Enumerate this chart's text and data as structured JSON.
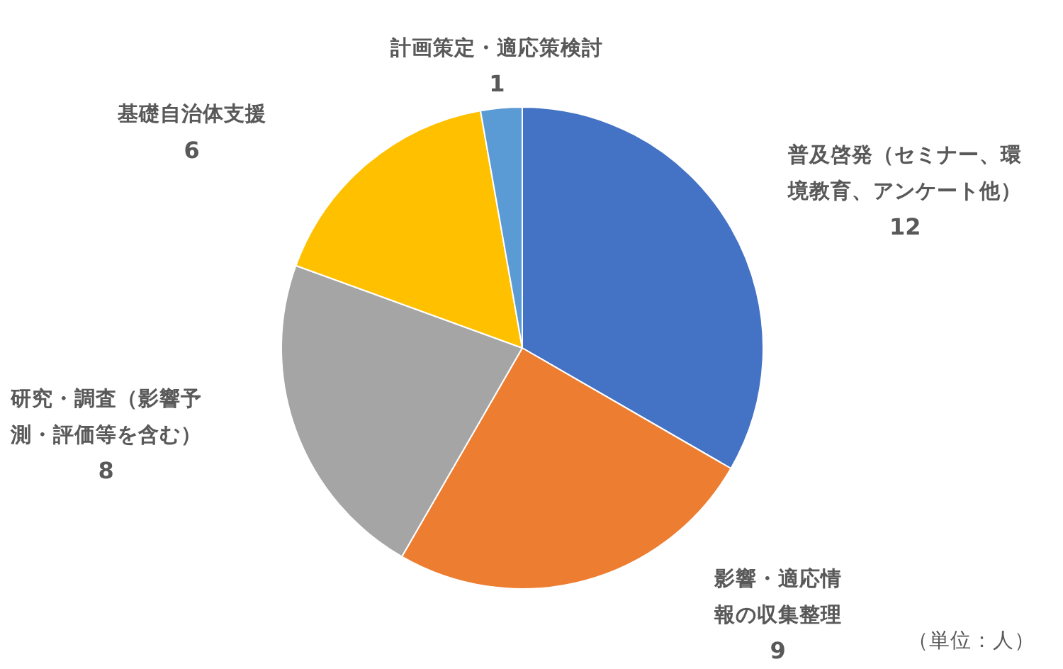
{
  "chart_data": {
    "type": "pie",
    "categories": [
      "普及啓発（セミナー、環境教育、アンケート他）",
      "影響・適応情報の収集整理",
      "研究・調査（影響予測・評価等を含む）",
      "基礎自治体支援",
      "計画策定・適応策検討"
    ],
    "values": [
      12,
      9,
      8,
      6,
      1
    ],
    "colors": [
      "#4472c4",
      "#ed7d31",
      "#a5a5a5",
      "#ffc000",
      "#5b9bd5"
    ],
    "data_labels": true,
    "annotations": [
      "（単位：人）"
    ]
  }
}
